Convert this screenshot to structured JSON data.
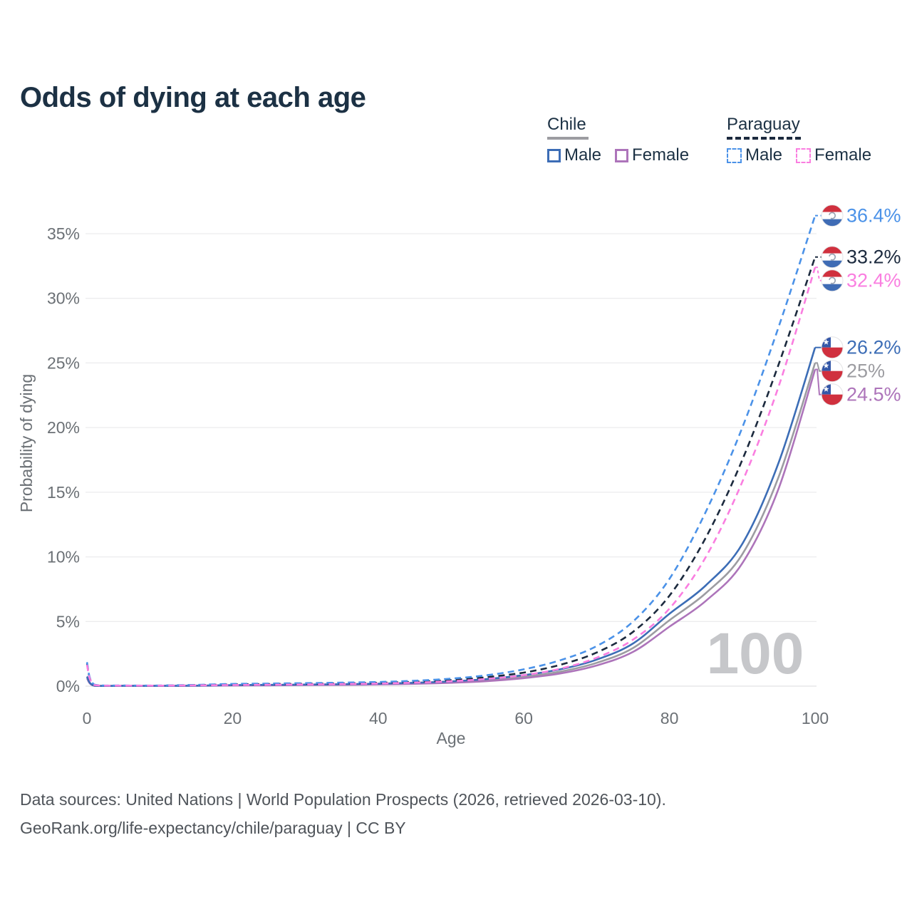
{
  "title": "Odds of dying at each age",
  "watermark": "100",
  "legend": {
    "groups": [
      {
        "name": "Chile",
        "line_style": "solid",
        "underline_color": "#9c9ca1",
        "items": [
          {
            "label": "Male",
            "color": "#3c6db6"
          },
          {
            "label": "Female",
            "color": "#ad74ba"
          }
        ]
      },
      {
        "name": "Paraguay",
        "line_style": "dashed",
        "underline_color": "#1c2a3e",
        "items": [
          {
            "label": "Male",
            "color": "#4b92e8"
          },
          {
            "label": "Female",
            "color": "#fa7ee0"
          }
        ]
      }
    ]
  },
  "footer": {
    "line1": "Data sources: United Nations | World Population Prospects (2026, retrieved 2026-03-10).",
    "line2": "GeoRank.org/life-expectancy/chile/paraguay | CC BY"
  },
  "chart_data": {
    "type": "line",
    "title": "Odds of dying at each age",
    "xlabel": "Age",
    "ylabel": "Probability of dying",
    "xlim": [
      0,
      100
    ],
    "ylim": [
      0,
      37
    ],
    "grid": "horizontal",
    "legend_position": "top-right",
    "x_ticks": [
      0,
      20,
      40,
      60,
      80,
      100
    ],
    "y_tick_values": [
      0,
      5,
      10,
      15,
      20,
      25,
      30,
      35
    ],
    "y_tick_labels": [
      "0%",
      "5%",
      "10%",
      "15%",
      "20%",
      "25%",
      "30%",
      "35%"
    ],
    "age_watermark": "100",
    "x": [
      0,
      1,
      5,
      10,
      15,
      20,
      25,
      30,
      35,
      40,
      45,
      50,
      55,
      60,
      65,
      70,
      75,
      80,
      85,
      90,
      95,
      100
    ],
    "series": [
      {
        "name": "Chile Both sexes",
        "country": "Chile",
        "sex": "both",
        "style": "solid",
        "color": "#9c9ca1",
        "flag": "chile",
        "end_label": "25%",
        "values": [
          0.7,
          0.04,
          0.02,
          0.02,
          0.03,
          0.06,
          0.08,
          0.1,
          0.12,
          0.16,
          0.22,
          0.31,
          0.46,
          0.72,
          1.12,
          1.8,
          2.95,
          5.1,
          7.2,
          10.2,
          16.2,
          25.0
        ]
      },
      {
        "name": "Chile Female",
        "country": "Chile",
        "sex": "female",
        "style": "solid",
        "color": "#ad74ba",
        "flag": "chile",
        "end_label": "24.5%",
        "values": [
          0.62,
          0.03,
          0.02,
          0.02,
          0.03,
          0.05,
          0.06,
          0.08,
          0.1,
          0.13,
          0.18,
          0.26,
          0.39,
          0.62,
          0.98,
          1.6,
          2.65,
          4.6,
          6.6,
          9.5,
          15.3,
          24.5
        ]
      },
      {
        "name": "Chile Male",
        "country": "Chile",
        "sex": "male",
        "style": "solid",
        "color": "#3c6db6",
        "flag": "chile",
        "end_label": "26.2%",
        "values": [
          0.75,
          0.04,
          0.02,
          0.02,
          0.04,
          0.08,
          0.1,
          0.12,
          0.15,
          0.19,
          0.26,
          0.37,
          0.55,
          0.85,
          1.3,
          2.05,
          3.3,
          5.6,
          7.8,
          11.0,
          17.3,
          26.2
        ]
      },
      {
        "name": "Paraguay Both sexes",
        "country": "Paraguay",
        "sex": "both",
        "style": "dashed",
        "color": "#1c2a3e",
        "flag": "paraguay",
        "end_label": "33.2%",
        "values": [
          1.75,
          0.1,
          0.04,
          0.04,
          0.08,
          0.13,
          0.16,
          0.18,
          0.21,
          0.26,
          0.34,
          0.47,
          0.7,
          1.05,
          1.65,
          2.6,
          4.2,
          7.0,
          11.5,
          17.5,
          24.9,
          33.2
        ]
      },
      {
        "name": "Paraguay Male",
        "country": "Paraguay",
        "sex": "male",
        "style": "dashed",
        "color": "#4b92e8",
        "flag": "paraguay",
        "end_label": "36.4%",
        "values": [
          1.85,
          0.12,
          0.05,
          0.05,
          0.1,
          0.17,
          0.2,
          0.23,
          0.27,
          0.32,
          0.42,
          0.58,
          0.85,
          1.3,
          2.0,
          3.1,
          5.0,
          8.3,
          13.5,
          20.0,
          27.8,
          36.4
        ]
      },
      {
        "name": "Paraguay Female",
        "country": "Paraguay",
        "sex": "female",
        "style": "dashed",
        "color": "#fa7ee0",
        "flag": "paraguay",
        "end_label": "32.4%",
        "values": [
          1.65,
          0.09,
          0.04,
          0.04,
          0.06,
          0.09,
          0.11,
          0.13,
          0.16,
          0.2,
          0.27,
          0.38,
          0.56,
          0.85,
          1.35,
          2.2,
          3.6,
          6.0,
          10.0,
          15.8,
          23.2,
          32.4
        ]
      }
    ]
  }
}
